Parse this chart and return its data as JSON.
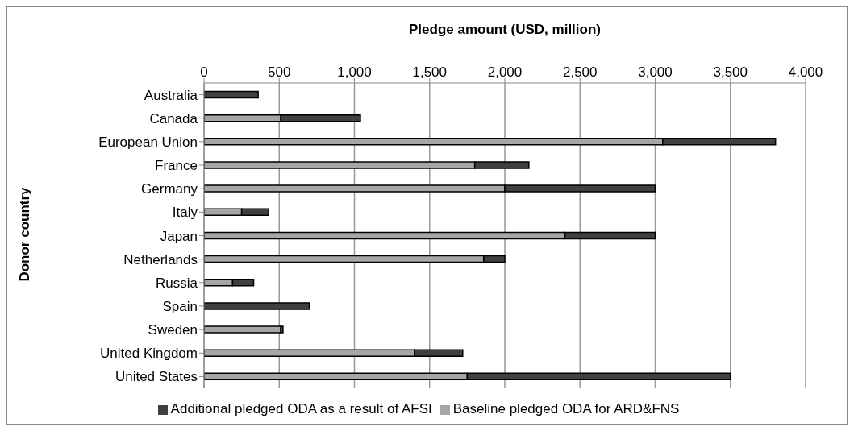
{
  "chart_data": {
    "type": "bar",
    "orientation": "horizontal",
    "stacked": true,
    "xlabel": "Pledge amount (USD, million)",
    "ylabel": "Donor country",
    "categories": [
      "Australia",
      "Canada",
      "European Union",
      "France",
      "Germany",
      "Italy",
      "Japan",
      "Netherlands",
      "Russia",
      "Spain",
      "Sweden",
      "United Kingdom",
      "United States"
    ],
    "series": [
      {
        "name": "Baseline pledged ODA for ARD&FNS",
        "color": "#a6a6a6",
        "values": [
          0,
          510,
          3050,
          1800,
          2000,
          250,
          2400,
          1860,
          190,
          0,
          510,
          1400,
          1750
        ]
      },
      {
        "name": "Additional pledged ODA as a result of AFSI",
        "color": "#404040",
        "values": [
          360,
          530,
          750,
          360,
          1000,
          180,
          600,
          140,
          140,
          700,
          15,
          320,
          1750
        ]
      }
    ],
    "xlim": [
      0,
      4000
    ],
    "xticks": [
      {
        "value": 0,
        "label": "0"
      },
      {
        "value": 500,
        "label": "500"
      },
      {
        "value": 1000,
        "label": "1,000"
      },
      {
        "value": 1500,
        "label": "1,500"
      },
      {
        "value": 2000,
        "label": "2,000"
      },
      {
        "value": 2500,
        "label": "2,500"
      },
      {
        "value": 3000,
        "label": "3,000"
      },
      {
        "value": 3500,
        "label": "3,500"
      },
      {
        "value": 4000,
        "label": "4,000"
      }
    ],
    "grid": "x",
    "legend": "bottom"
  }
}
